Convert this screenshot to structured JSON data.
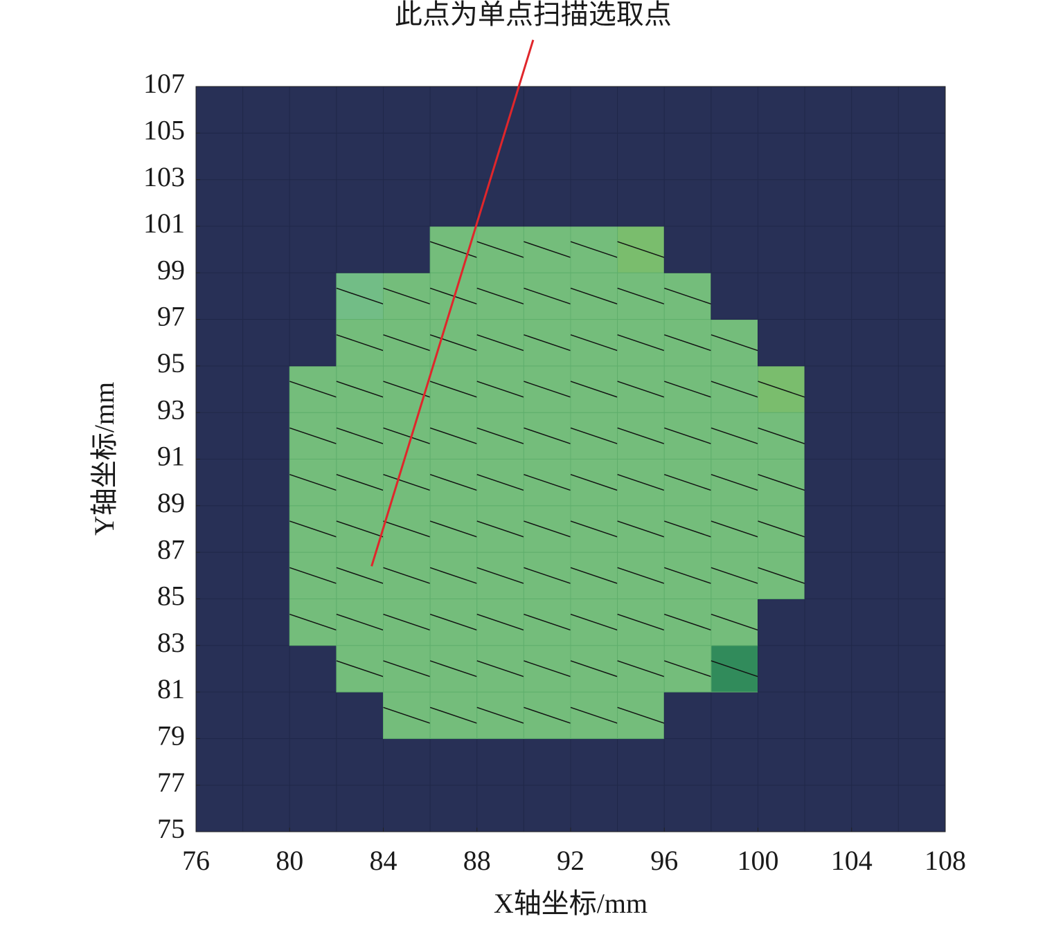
{
  "chart_data": {
    "type": "heatmap",
    "xlabel": "X轴坐标/mm",
    "ylabel": "Y轴坐标/mm",
    "x": [
      76,
      78,
      80,
      82,
      84,
      86,
      88,
      90,
      92,
      94,
      96,
      98,
      100,
      102,
      104,
      106,
      108
    ],
    "y": [
      75,
      77,
      79,
      81,
      83,
      85,
      87,
      89,
      91,
      93,
      95,
      97,
      99,
      101,
      103,
      105,
      107
    ],
    "z": [
      [
        0,
        0,
        0,
        0,
        0,
        0,
        0,
        0,
        0,
        0,
        0,
        0,
        0,
        0,
        0,
        0
      ],
      [
        0,
        0,
        0,
        0,
        0,
        0,
        0,
        0,
        0,
        0,
        0,
        0,
        0,
        0,
        0,
        0
      ],
      [
        0,
        0,
        0,
        0,
        1,
        1,
        1,
        1,
        1,
        1,
        0,
        0,
        0,
        0,
        0,
        0
      ],
      [
        0,
        0,
        0,
        1,
        1,
        1,
        1,
        1,
        1,
        1,
        1,
        4,
        0,
        0,
        0,
        0
      ],
      [
        0,
        0,
        1,
        1,
        1,
        1,
        1,
        1,
        1,
        1,
        1,
        1,
        0,
        0,
        0,
        0
      ],
      [
        0,
        0,
        1,
        1,
        1,
        1,
        1,
        1,
        1,
        1,
        1,
        1,
        1,
        0,
        0,
        0
      ],
      [
        0,
        0,
        1,
        1,
        1,
        1,
        1,
        1,
        1,
        1,
        1,
        1,
        1,
        0,
        0,
        0
      ],
      [
        0,
        0,
        1,
        1,
        1,
        1,
        1,
        1,
        1,
        1,
        1,
        1,
        1,
        0,
        0,
        0
      ],
      [
        0,
        0,
        1,
        1,
        1,
        1,
        1,
        1,
        1,
        1,
        1,
        1,
        1,
        0,
        0,
        0
      ],
      [
        0,
        0,
        1,
        1,
        1,
        1,
        1,
        1,
        1,
        1,
        1,
        1,
        3,
        0,
        0,
        0
      ],
      [
        0,
        0,
        0,
        1,
        1,
        1,
        1,
        1,
        1,
        1,
        1,
        1,
        0,
        0,
        0,
        0
      ],
      [
        0,
        0,
        0,
        2,
        1,
        1,
        1,
        1,
        1,
        1,
        1,
        0,
        0,
        0,
        0,
        0
      ],
      [
        0,
        0,
        0,
        0,
        0,
        1,
        1,
        1,
        1,
        3,
        0,
        0,
        0,
        0,
        0,
        0
      ],
      [
        0,
        0,
        0,
        0,
        0,
        0,
        0,
        0,
        0,
        0,
        0,
        0,
        0,
        0,
        0,
        0
      ],
      [
        0,
        0,
        0,
        0,
        0,
        0,
        0,
        0,
        0,
        0,
        0,
        0,
        0,
        0,
        0,
        0
      ],
      [
        0,
        0,
        0,
        0,
        0,
        0,
        0,
        0,
        0,
        0,
        0,
        0,
        0,
        0,
        0,
        0
      ]
    ],
    "palette": [
      "#283056",
      "#74bd7b",
      "#72bd86",
      "#7abd6d",
      "#318b5b"
    ],
    "xlim": [
      76,
      108
    ],
    "ylim": [
      75,
      107
    ],
    "xticks": [
      76,
      80,
      84,
      88,
      92,
      96,
      100,
      104,
      108
    ],
    "yticks": [
      75,
      77,
      79,
      81,
      83,
      85,
      87,
      89,
      91,
      93,
      95,
      97,
      99,
      101,
      103,
      105,
      107
    ],
    "annotation": {
      "text": "此点为单点扫描选取点",
      "xy": [
        83.5,
        86.4
      ],
      "xytext": [
        90.4,
        109
      ],
      "color": "#e0262b"
    }
  }
}
